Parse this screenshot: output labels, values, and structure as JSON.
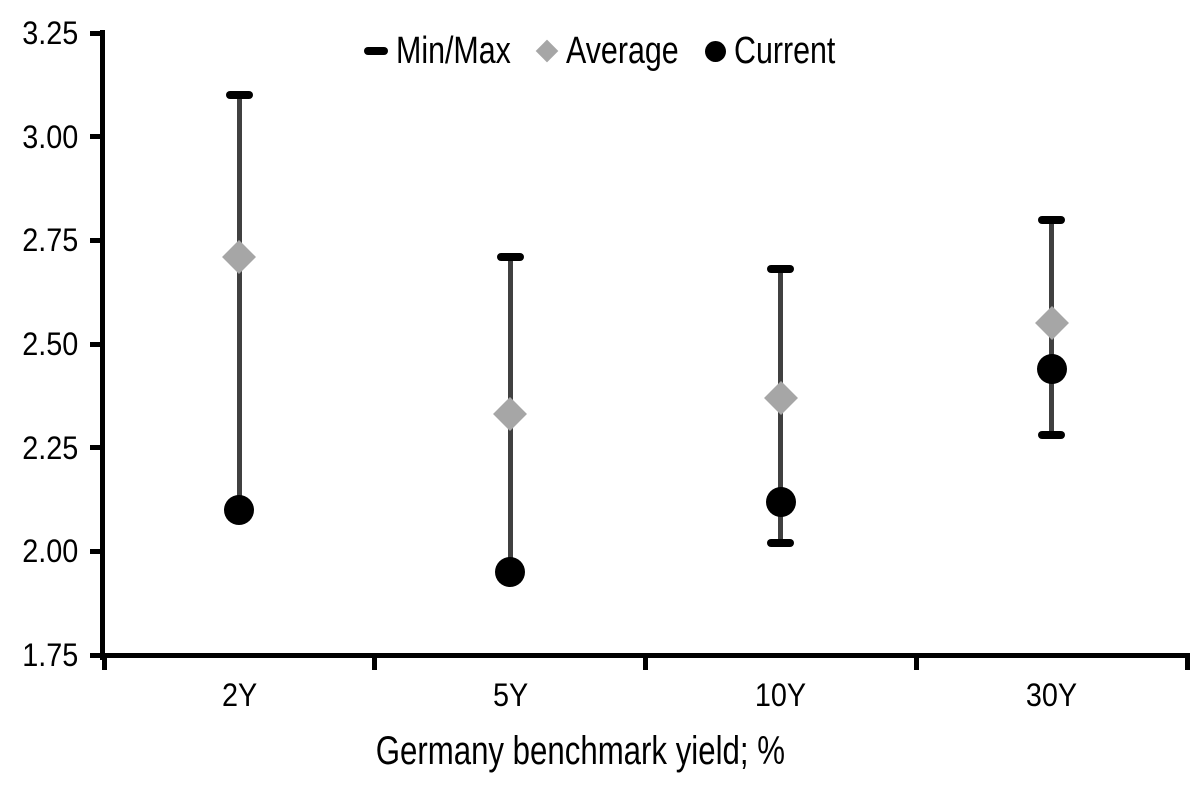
{
  "chart_data": {
    "type": "scatter",
    "subtype": "min-max-range-chart",
    "categories": [
      "2Y",
      "5Y",
      "10Y",
      "30Y"
    ],
    "series": [
      {
        "name": "Min/Max",
        "marker": "dash",
        "role": "range",
        "min": [
          2.1,
          1.95,
          2.02,
          2.28
        ],
        "max": [
          3.1,
          2.71,
          2.68,
          2.8
        ]
      },
      {
        "name": "Average",
        "marker": "diamond",
        "values": [
          2.71,
          2.33,
          2.37,
          2.55
        ]
      },
      {
        "name": "Current",
        "marker": "circle",
        "values": [
          2.1,
          1.95,
          2.12,
          2.44
        ]
      }
    ],
    "xlabel": "Germany benchmark yield; %",
    "ylabel": "",
    "ylim": [
      1.75,
      3.25
    ],
    "ytick_values": [
      3.25,
      3.0,
      2.75,
      2.5,
      2.25,
      2.0,
      1.75
    ],
    "ytick_labels": [
      "3.25",
      "3.00",
      "2.75",
      "2.50",
      "2.25",
      "2.00",
      "1.75"
    ],
    "grid": false,
    "legend_position": "top-center",
    "colors": {
      "axis": "#000000",
      "text": "#000000",
      "range_line": "#404040",
      "cap": "#000000",
      "average": "#a6a6a6",
      "current": "#000000",
      "background": "#ffffff"
    }
  }
}
